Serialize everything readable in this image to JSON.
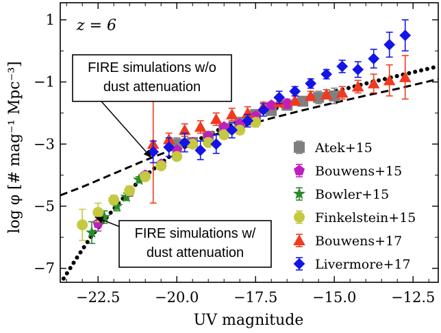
{
  "chart_data": {
    "type": "scatter",
    "redshift_label": "z = 6",
    "xlabel": "UV magnitude",
    "ylabel": "log φ [# mag⁻¹ Mpc⁻³]",
    "xlim": [
      -23.7,
      -11.7
    ],
    "ylim": [
      -7.45,
      1.55
    ],
    "xticks": [
      -22.5,
      -20.0,
      -17.5,
      -15.0,
      -12.5
    ],
    "xtick_labels": [
      "−22.5",
      "−20.0",
      "−17.5",
      "−15.0",
      "−12.5"
    ],
    "yticks": [
      1,
      -1,
      -3,
      -5,
      -7
    ],
    "ytick_labels": [
      "1",
      "−1",
      "−3",
      "−5",
      "−7"
    ],
    "legend_position": "lower-right",
    "curves": [
      {
        "name": "FIRE simulations w/o dust attenuation",
        "style": "dashed",
        "x": [
          -23.7,
          -23.0,
          -22.0,
          -21.0,
          -20.0,
          -19.0,
          -18.0,
          -17.0,
          -16.0,
          -15.0,
          -14.0,
          -13.0,
          -12.0,
          -11.7
        ],
        "y": [
          -4.65,
          -4.38,
          -3.95,
          -3.52,
          -3.12,
          -2.76,
          -2.45,
          -2.17,
          -1.91,
          -1.67,
          -1.44,
          -1.22,
          -0.98,
          -0.9
        ]
      },
      {
        "name": "FIRE simulations w/ dust attenuation",
        "style": "dotted",
        "x": [
          -23.7,
          -23.2,
          -22.7,
          -22.3,
          -21.8,
          -21.3,
          -20.8,
          -20.3,
          -19.8,
          -19.3,
          -18.8,
          -18.3,
          -17.8,
          -17.3,
          -16.8,
          -16.3,
          -15.8,
          -15.3,
          -14.8,
          -14.3,
          -13.8,
          -13.3,
          -12.8,
          -12.3,
          -11.7
        ],
        "y": [
          -7.5,
          -6.7,
          -5.95,
          -5.45,
          -4.85,
          -4.3,
          -3.85,
          -3.45,
          -3.12,
          -2.85,
          -2.6,
          -2.38,
          -2.18,
          -2.0,
          -1.83,
          -1.68,
          -1.53,
          -1.39,
          -1.26,
          -1.13,
          -1.0,
          -0.88,
          -0.76,
          -0.64,
          -0.5
        ]
      }
    ],
    "annotations": [
      {
        "lines": [
          "FIRE simulations w/o",
          "dust attenuation"
        ],
        "points_to": [
          -20.8,
          -3.45
        ]
      },
      {
        "lines": [
          "FIRE simulations w/",
          "dust attenuation"
        ],
        "points_to": [
          -22.6,
          -5.35
        ]
      }
    ],
    "series": [
      {
        "name": "Atek+15",
        "marker": "square",
        "color": "#808080",
        "x": [
          -20.0,
          -19.5,
          -19.0,
          -18.5,
          -18.0,
          -17.5,
          -17.0,
          -16.5,
          -16.0,
          -15.5,
          -15.0
        ],
        "y": [
          -3.0,
          -2.95,
          -2.75,
          -2.5,
          -2.3,
          -2.05,
          -1.92,
          -1.75,
          -1.62,
          -1.5,
          -1.45
        ],
        "err": [
          0.2,
          0.15,
          0.15,
          0.15,
          0.12,
          0.12,
          0.12,
          0.15,
          0.15,
          0.2,
          0.25
        ]
      },
      {
        "name": "Bouwens+15",
        "marker": "pentagon",
        "color": "#bf1fbf",
        "x": [
          -22.5,
          -22.0,
          -21.5,
          -21.0,
          -20.5,
          -20.0,
          -19.5,
          -19.0,
          -18.5,
          -18.0,
          -17.5,
          -17.0,
          -16.5
        ],
        "y": [
          -5.55,
          -4.8,
          -4.55,
          -4.0,
          -3.65,
          -3.2,
          -2.95,
          -2.75,
          -2.45,
          -2.35,
          -2.1,
          -1.75,
          -1.7
        ],
        "err": [
          0.25,
          0.1,
          0.1,
          0.1,
          0.1,
          0.08,
          0.08,
          0.08,
          0.08,
          0.08,
          0.08,
          0.1,
          0.15
        ]
      },
      {
        "name": "Bowler+15",
        "marker": "star",
        "color": "#2a8a2a",
        "x": [
          -22.7,
          -22.3,
          -21.9,
          -21.6,
          -21.2
        ],
        "y": [
          -5.85,
          -5.35,
          -5.0,
          -4.7,
          -4.15
        ],
        "err": [
          0.35,
          0.2,
          0.15,
          0.12,
          0.1
        ]
      },
      {
        "name": "Finkelstein+15",
        "marker": "circle",
        "color": "#c5c940",
        "x": [
          -23.0,
          -22.5,
          -22.0,
          -21.5,
          -21.0,
          -20.5,
          -20.0,
          -19.5,
          -19.0,
          -18.5,
          -18.0,
          -17.5
        ],
        "y": [
          -5.6,
          -5.2,
          -4.8,
          -4.5,
          -4.05,
          -3.7,
          -3.4,
          -3.0,
          -2.95,
          -2.7,
          -2.55,
          -2.3
        ],
        "err": [
          0.5,
          0.3,
          0.15,
          0.15,
          0.1,
          0.1,
          0.08,
          0.08,
          0.1,
          0.1,
          0.12,
          0.15
        ]
      },
      {
        "name": "Bouwens+17",
        "marker": "triangle",
        "color": "#f03a1f",
        "x": [
          -20.75,
          -20.25,
          -19.75,
          -19.25,
          -18.75,
          -18.25,
          -17.75,
          -17.25,
          -16.75,
          -16.25,
          -15.75,
          -15.25,
          -14.75,
          -14.25,
          -13.75,
          -13.25,
          -12.75
        ],
        "y": [
          -3.0,
          -2.85,
          -2.55,
          -2.45,
          -2.2,
          -2.05,
          -2.0,
          -1.8,
          -1.65,
          -1.6,
          -1.45,
          -1.4,
          -1.35,
          -1.15,
          -1.05,
          -0.95,
          -0.85
        ],
        "err": [
          1.9,
          0.2,
          0.2,
          0.2,
          0.2,
          0.2,
          0.2,
          0.15,
          0.15,
          0.15,
          0.15,
          0.15,
          0.2,
          0.2,
          0.3,
          0.5,
          0.7
        ]
      },
      {
        "name": "Livermore+17",
        "marker": "diamond",
        "color": "#1414e6",
        "x": [
          -20.75,
          -20.25,
          -19.75,
          -19.25,
          -18.75,
          -18.25,
          -17.75,
          -17.25,
          -16.75,
          -16.25,
          -15.75,
          -15.25,
          -14.75,
          -14.25,
          -13.75,
          -13.25,
          -12.75
        ],
        "y": [
          -3.25,
          -3.1,
          -2.95,
          -3.2,
          -3.0,
          -2.55,
          -2.25,
          -1.9,
          -1.5,
          -1.3,
          -1.05,
          -0.75,
          -0.5,
          -0.6,
          -0.25,
          0.2,
          0.5
        ],
        "err": [
          0.35,
          0.3,
          0.3,
          0.3,
          0.3,
          0.25,
          0.2,
          0.2,
          0.2,
          0.15,
          0.15,
          0.15,
          0.2,
          0.25,
          0.3,
          0.4,
          0.5
        ]
      }
    ]
  }
}
